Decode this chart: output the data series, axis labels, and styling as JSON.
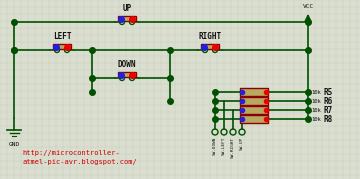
{
  "bg_color": "#daded0",
  "grid_color": "#c5c8b0",
  "wire_color": "#005000",
  "component_color": "#8b0000",
  "dot_color": "#005000",
  "red_dot": "#ee0000",
  "blue_dot": "#2020dd",
  "text_color_red": "#cc0000",
  "text_color_dark": "#111111",
  "label_up": "UP",
  "label_down": "DOWN",
  "label_left": "LEFT",
  "label_right": "RIGHT",
  "label_vcc": "VCC",
  "label_gnd": "GND",
  "label_url1": "http://microcontroller-",
  "label_url2": "atmel-pic-avr.blogspot.com/",
  "resistor_labels": [
    "R5",
    "R6",
    "R7",
    "R8"
  ],
  "resistor_10k": [
    "10k",
    "10k",
    "10k",
    "10k"
  ],
  "sw_labels": [
    "SW-DOWN",
    "SW-LEFT",
    "SW-RIGHT",
    "SW-UP"
  ],
  "figsize": [
    3.6,
    1.79
  ],
  "dpi": 100
}
